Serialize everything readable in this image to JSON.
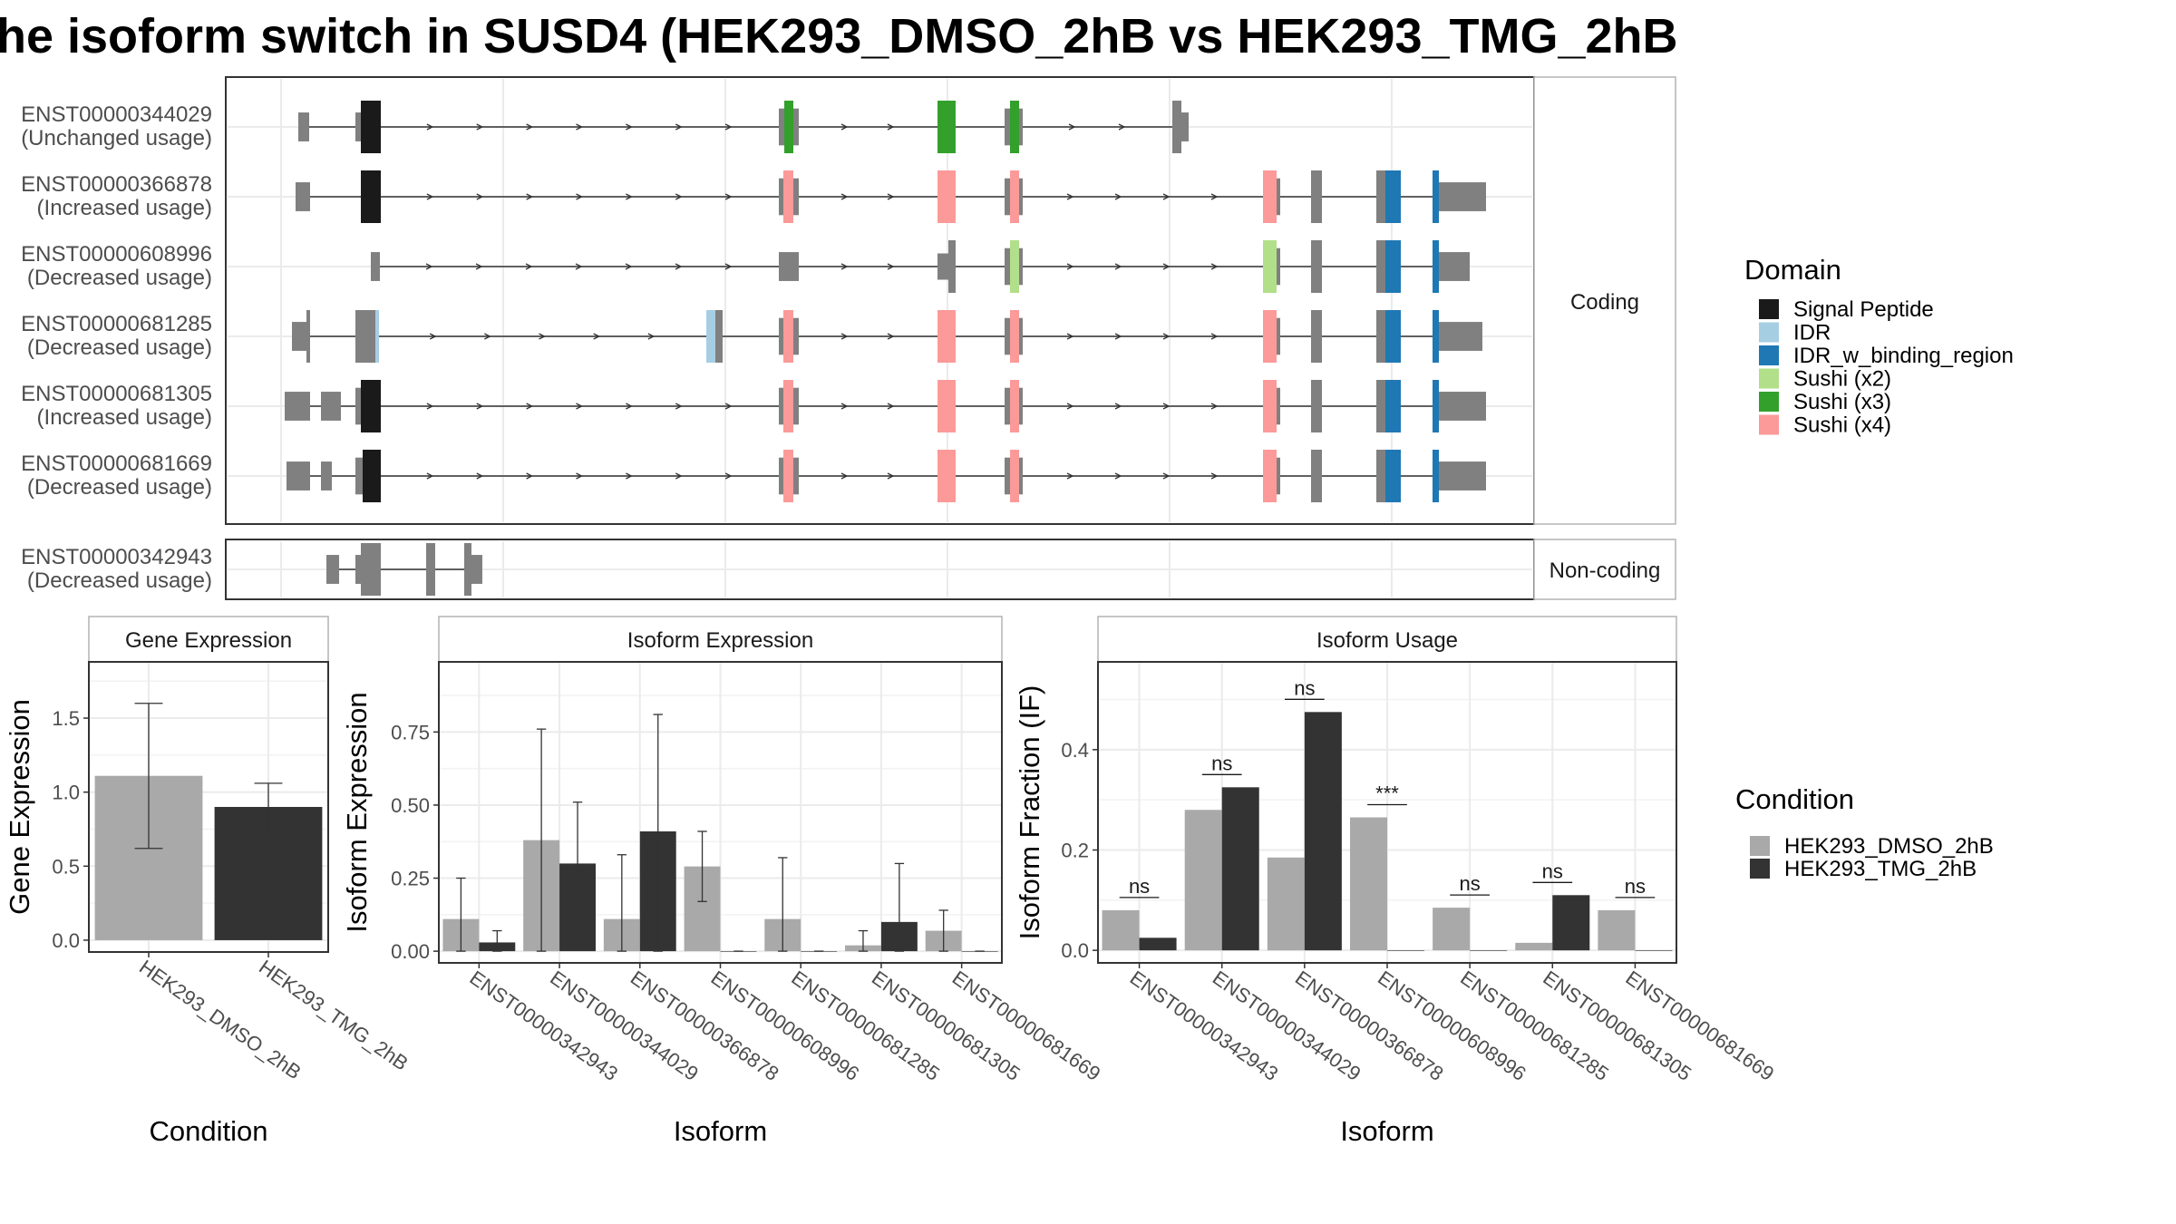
{
  "title": "he isoform switch in SUSD4 (HEK293_DMSO_2hB vs HEK293_TMG_2hB",
  "colors": {
    "signal_peptide": "#1a1a1a",
    "idr": "#a6cee3",
    "idr_binding": "#1f78b4",
    "sushi_x2": "#b2df8a",
    "sushi_x3": "#33a02c",
    "sushi_x4": "#fb9a99",
    "exon_grey": "#808080",
    "cond_dmso": "#a9a9a9",
    "cond_tmg": "#333333"
  },
  "structure": {
    "coding_label": "Coding",
    "noncoding_label": "Non-coding",
    "transcripts": [
      {
        "id": "ENST00000344029",
        "usage": "(Unchanged usage)",
        "group": "coding"
      },
      {
        "id": "ENST00000366878",
        "usage": "(Increased usage)",
        "group": "coding"
      },
      {
        "id": "ENST00000608996",
        "usage": "(Decreased usage)",
        "group": "coding"
      },
      {
        "id": "ENST00000681285",
        "usage": "(Decreased usage)",
        "group": "coding"
      },
      {
        "id": "ENST00000681305",
        "usage": "(Increased usage)",
        "group": "coding"
      },
      {
        "id": "ENST00000681669",
        "usage": "(Decreased usage)",
        "group": "coding"
      },
      {
        "id": "ENST00000342943",
        "usage": "(Decreased usage)",
        "group": "noncoding"
      }
    ]
  },
  "domain_legend": {
    "title": "Domain",
    "items": [
      {
        "label": "Signal Peptide",
        "color": "#1a1a1a"
      },
      {
        "label": "IDR",
        "color": "#a6cee3"
      },
      {
        "label": "IDR_w_binding_region",
        "color": "#1f78b4"
      },
      {
        "label": "Sushi (x2)",
        "color": "#b2df8a"
      },
      {
        "label": "Sushi (x3)",
        "color": "#33a02c"
      },
      {
        "label": "Sushi (x4)",
        "color": "#fb9a99"
      }
    ]
  },
  "condition_legend": {
    "title": "Condition",
    "items": [
      {
        "label": "HEK293_DMSO_2hB",
        "color": "#a9a9a9"
      },
      {
        "label": "HEK293_TMG_2hB",
        "color": "#333333"
      }
    ]
  },
  "chart_data": [
    {
      "type": "bar",
      "panel_title": "Gene Expression",
      "xlabel": "Condition",
      "ylabel": "Gene Expression",
      "ylim": [
        -0.08,
        1.88
      ],
      "yticks": [
        0.0,
        0.5,
        1.0,
        1.5
      ],
      "ytick_labels": [
        "0.0",
        "0.5",
        "1.0",
        "1.5"
      ],
      "categories": [
        "HEK293_DMSO_2hB",
        "HEK293_TMG_2hB"
      ],
      "values": [
        1.11,
        0.9
      ],
      "err_low": [
        0.62,
        0.73
      ],
      "err_high": [
        1.6,
        1.06
      ]
    },
    {
      "type": "bar",
      "panel_title": "Isoform Expression",
      "xlabel": "Isoform",
      "ylabel": "Isoform Expression",
      "ylim": [
        -0.04,
        0.99
      ],
      "yticks": [
        0.0,
        0.25,
        0.5,
        0.75
      ],
      "ytick_labels": [
        "0.00",
        "0.25",
        "0.50",
        "0.75"
      ],
      "categories": [
        "ENST00000342943",
        "ENST00000344029",
        "ENST00000366878",
        "ENST00000608996",
        "ENST00000681285",
        "ENST00000681305",
        "ENST00000681669"
      ],
      "series": [
        {
          "name": "HEK293_DMSO_2hB",
          "values": [
            0.11,
            0.38,
            0.11,
            0.29,
            0.11,
            0.02,
            0.07
          ],
          "err_low": [
            0.0,
            0.0,
            0.0,
            0.17,
            0.0,
            0.0,
            0.0
          ],
          "err_high": [
            0.25,
            0.76,
            0.33,
            0.41,
            0.32,
            0.07,
            0.14
          ]
        },
        {
          "name": "HEK293_TMG_2hB",
          "values": [
            0.03,
            0.3,
            0.41,
            0.0,
            0.0,
            0.1,
            0.0
          ],
          "err_low": [
            0.0,
            0.1,
            0.0,
            0.0,
            0.0,
            0.0,
            0.0
          ],
          "err_high": [
            0.07,
            0.51,
            0.81,
            0.0,
            0.0,
            0.3,
            0.0
          ]
        }
      ]
    },
    {
      "type": "bar",
      "panel_title": "Isoform Usage",
      "xlabel": "Isoform",
      "ylabel": "Isoform Fraction (IF)",
      "ylim": [
        -0.025,
        0.575
      ],
      "yticks": [
        0.0,
        0.2,
        0.4
      ],
      "ytick_labels": [
        "0.0",
        "0.2",
        "0.4"
      ],
      "categories": [
        "ENST00000342943",
        "ENST00000344029",
        "ENST00000366878",
        "ENST00000608996",
        "ENST00000681285",
        "ENST00000681305",
        "ENST00000681669"
      ],
      "series": [
        {
          "name": "HEK293_DMSO_2hB",
          "values": [
            0.08,
            0.28,
            0.185,
            0.265,
            0.085,
            0.015,
            0.08
          ]
        },
        {
          "name": "HEK293_TMG_2hB",
          "values": [
            0.025,
            0.325,
            0.475,
            0.0,
            0.0,
            0.11,
            0.0
          ]
        }
      ],
      "significance": [
        "ns",
        "ns",
        "ns",
        "***",
        "ns",
        "ns",
        "ns"
      ]
    }
  ]
}
